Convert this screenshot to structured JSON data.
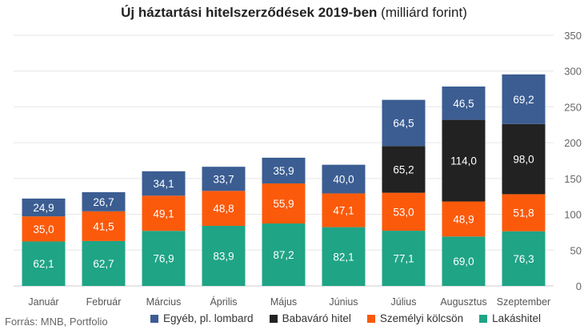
{
  "chart_data": {
    "type": "bar",
    "stacked": true,
    "title": "Új háztartási hitelszerződések 2019-ben",
    "subtitle": "(milliárd forint)",
    "source": "Forrás: MNB, Portfolio",
    "categories": [
      "Január",
      "Február",
      "Március",
      "Április",
      "Május",
      "Június",
      "Július",
      "Augusztus",
      "Szeptember"
    ],
    "ylim": [
      0,
      350
    ],
    "yticks": [
      0,
      50,
      100,
      150,
      200,
      250,
      300,
      350
    ],
    "grid": true,
    "legend_position": "bottom",
    "series": [
      {
        "name": "Lakáshitel",
        "color": "#1fa486",
        "values": [
          62.1,
          62.7,
          76.9,
          83.9,
          87.2,
          82.1,
          77.1,
          69.0,
          76.3
        ],
        "labels": [
          "62,1",
          "62,7",
          "76,9",
          "83,9",
          "87,2",
          "82,1",
          "77,1",
          "69,0",
          "76,3"
        ]
      },
      {
        "name": "Személyi kölcsön",
        "color": "#fb5a0b",
        "values": [
          35.0,
          41.5,
          49.1,
          48.8,
          55.9,
          47.1,
          53.0,
          48.9,
          51.8
        ],
        "labels": [
          "35,0",
          "41,5",
          "49,1",
          "48,8",
          "55,9",
          "47,1",
          "53,0",
          "48,9",
          "51,8"
        ]
      },
      {
        "name": "Babaváró hitel",
        "color": "#222222",
        "values": [
          0,
          0,
          0,
          0,
          0,
          0,
          65.2,
          114.0,
          98.0
        ],
        "labels": [
          "",
          "",
          "",
          "",
          "",
          "",
          "65,2",
          "114,0",
          "98,0"
        ]
      },
      {
        "name": "Egyéb, pl. lombard",
        "color": "#3b5d92",
        "values": [
          24.9,
          26.7,
          34.1,
          33.7,
          35.9,
          40.0,
          64.5,
          46.5,
          69.2
        ],
        "labels": [
          "24,9",
          "26,7",
          "34,1",
          "33,7",
          "35,9",
          "40,0",
          "64,5",
          "46,5",
          "69,2"
        ]
      }
    ],
    "legend_order": [
      "Egyéb, pl. lombard",
      "Babaváró hitel",
      "Személyi kölcsön",
      "Lakáshitel"
    ]
  }
}
